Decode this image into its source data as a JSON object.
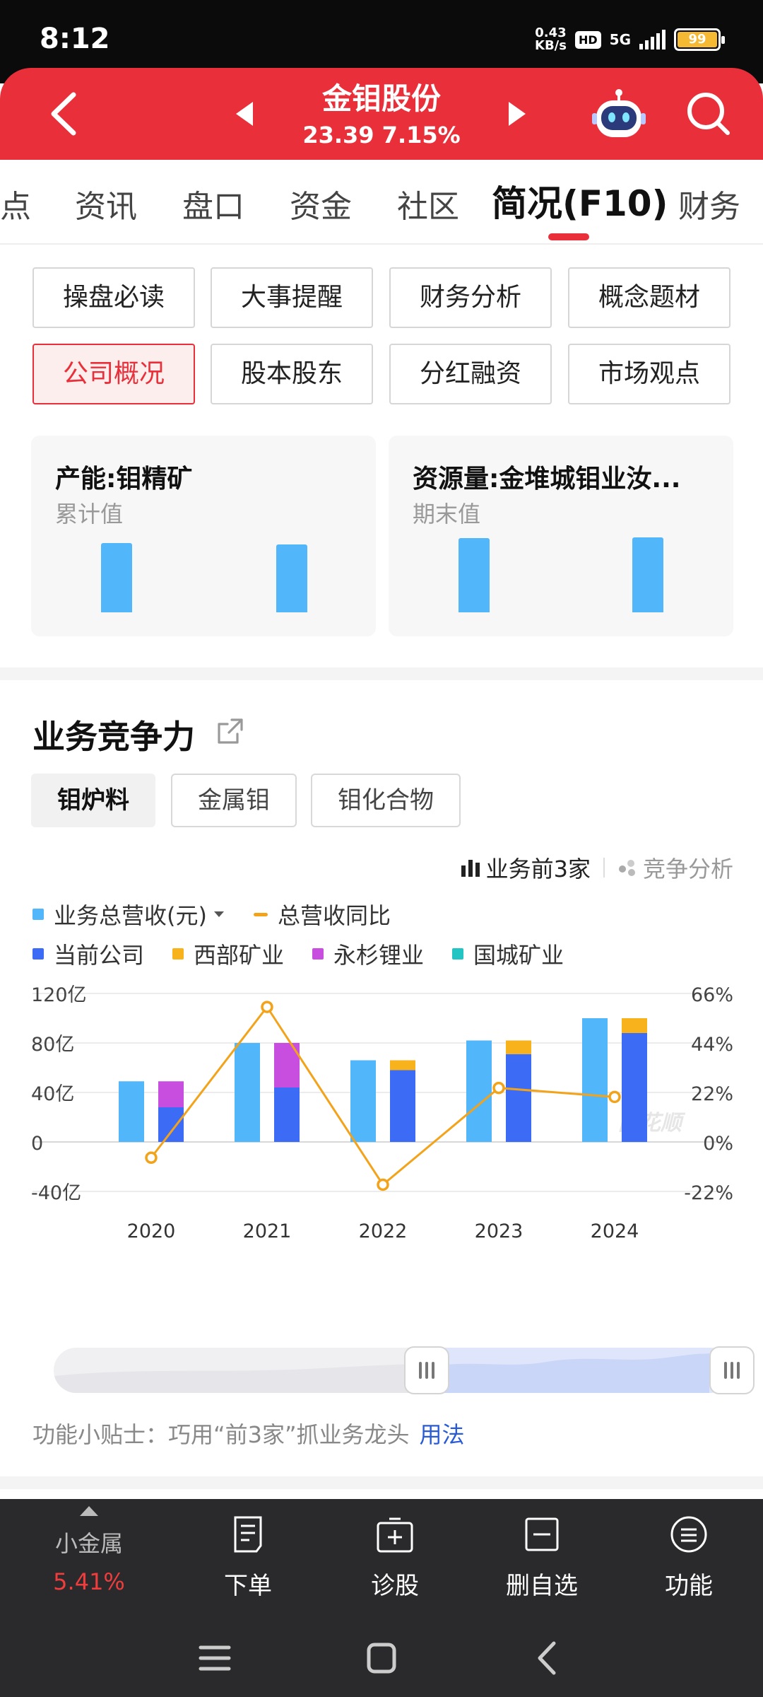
{
  "status_bar": {
    "time": "8:12",
    "speed_value": "0.43",
    "speed_unit": "KB/s",
    "hd": "HD",
    "network": "5G",
    "battery": "99"
  },
  "header": {
    "stock_name": "金钼股份",
    "price_change": "23.39 7.15%"
  },
  "tabs": [
    "点",
    "资讯",
    "盘口",
    "资金",
    "社区",
    "简况(F10)",
    "财务"
  ],
  "active_tab": "简况(F10)",
  "grid_buttons": [
    [
      "操盘必读",
      "大事提醒",
      "财务分析",
      "概念题材"
    ],
    [
      "公司概况",
      "股本股东",
      "分红融资",
      "市场观点"
    ]
  ],
  "selected_grid_button": "公司概况",
  "cards": [
    {
      "title": "产能:钼精矿",
      "subtitle": "累计值",
      "bar_levels": [
        0.92,
        0.91
      ]
    },
    {
      "title": "资源量:金堆城钼业汝...",
      "subtitle": "期末值",
      "bar_levels": [
        0.99,
        1.0
      ]
    }
  ],
  "section": {
    "title": "业务竞争力",
    "chips": [
      "钼炉料",
      "金属钼",
      "钼化合物"
    ],
    "selected_chip": "钼炉料",
    "switch_primary": "业务前3家",
    "switch_secondary": "竞争分析",
    "legend_total": "业务总营收(元)",
    "legend_yoy": "总营收同比",
    "legend_companies": [
      "当前公司",
      "西部矿业",
      "永杉锂业",
      "国城矿业"
    ],
    "watermark": "同花顺",
    "tips_text": "功能小贴士：巧用“前3家”抓业务龙头",
    "tips_link": "用法"
  },
  "colors": {
    "brand_red": "#e9303a",
    "total_bar": "#52b6fb",
    "current_company": "#3c6cf6",
    "xibu": "#f8b21b",
    "yongshan": "#c84ee0",
    "guocheng": "#22c4c4",
    "yoy_line": "#f3a31a"
  },
  "chart_data": {
    "type": "bar",
    "categories": [
      "2020",
      "2021",
      "2022",
      "2023",
      "2024"
    ],
    "y_left_ticks": [
      "120亿",
      "80亿",
      "40亿",
      "0",
      "-40亿"
    ],
    "y_right_ticks": [
      "66%",
      "44%",
      "22%",
      "0%",
      "-22%"
    ],
    "ylim_left": [
      -40,
      120
    ],
    "ylim_right": [
      -22,
      66
    ],
    "series": [
      {
        "name": "业务总营收(元)",
        "values": [
          49,
          80,
          66,
          82,
          100
        ]
      },
      {
        "name": "当前公司",
        "values": [
          28,
          44,
          58,
          71,
          88
        ]
      },
      {
        "name": "西部矿业",
        "values": [
          0,
          0,
          8,
          11,
          12
        ]
      },
      {
        "name": "永杉锂业",
        "values": [
          21,
          36,
          0,
          0,
          0
        ]
      },
      {
        "name": "国城矿业",
        "values": [
          0,
          0,
          0,
          0,
          0
        ]
      },
      {
        "name": "总营收同比",
        "values": [
          -7,
          60,
          -19,
          24,
          20
        ]
      }
    ]
  },
  "slider": {
    "start": 0.55,
    "end": 1.0
  },
  "toolbar": {
    "stock_name": "小金属",
    "stock_pct": "5.41%",
    "items": [
      "下单",
      "诊股",
      "删自选",
      "功能"
    ]
  }
}
